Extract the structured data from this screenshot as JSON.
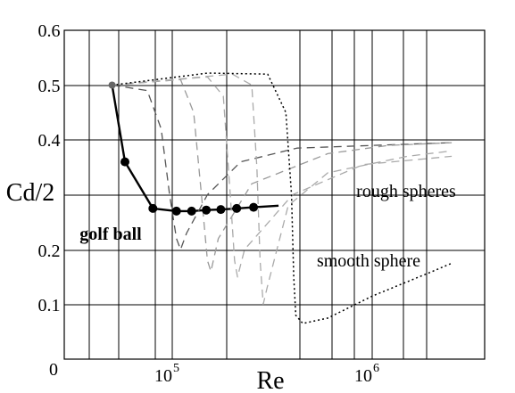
{
  "chart_data": {
    "type": "line",
    "x_scale": "log",
    "xlabel": "Re",
    "ylabel": "Cd/2",
    "ylim": [
      0,
      0.6
    ],
    "y_ticks": [
      "0",
      "0.1",
      "0.2",
      "0.4",
      "0.5",
      "0.6"
    ],
    "x_ticks": [
      {
        "value": 100000,
        "label": "10",
        "exp": "5"
      },
      {
        "value": 1000000,
        "label": "10",
        "exp": "6"
      }
    ],
    "grid": true,
    "annotations": [
      {
        "text": "golf ball",
        "x": 34000,
        "y": 0.245,
        "weight": "bold"
      },
      {
        "text": "rough spheres",
        "x": 850000,
        "y": 0.31
      },
      {
        "text": "smooth sphere",
        "x": 600000,
        "y": 0.18
      }
    ],
    "series": [
      {
        "style": "solid",
        "markers": true,
        "color": "#000000",
        "points": [
          [
            50000,
            0.5
          ],
          [
            58000,
            0.36
          ],
          [
            80000,
            0.275
          ],
          [
            105000,
            0.27
          ],
          [
            125000,
            0.27
          ],
          [
            148000,
            0.272
          ],
          [
            175000,
            0.273
          ],
          [
            210000,
            0.275
          ],
          [
            255000,
            0.277
          ],
          [
            340000,
            0.28
          ]
        ],
        "marker_indices": [
          0,
          1,
          2,
          3,
          4,
          5,
          6,
          7,
          8
        ]
      },
      {
        "style": "dashed",
        "color": "#555555",
        "points": [
          [
            50000,
            0.5
          ],
          [
            75000,
            0.49
          ],
          [
            88000,
            0.42
          ],
          [
            97000,
            0.3
          ],
          [
            105000,
            0.22
          ],
          [
            110000,
            0.2
          ],
          [
            118000,
            0.23
          ],
          [
            150000,
            0.3
          ],
          [
            220000,
            0.36
          ],
          [
            420000,
            0.385
          ],
          [
            1000000,
            0.39
          ],
          [
            2500000,
            0.395
          ]
        ]
      },
      {
        "style": "dashed",
        "color": "#999999",
        "points": [
          [
            50000,
            0.5
          ],
          [
            110000,
            0.51
          ],
          [
            128000,
            0.45
          ],
          [
            140000,
            0.3
          ],
          [
            150000,
            0.18
          ],
          [
            156000,
            0.16
          ],
          [
            170000,
            0.22
          ],
          [
            250000,
            0.32
          ],
          [
            600000,
            0.375
          ],
          [
            1200000,
            0.39
          ],
          [
            2500000,
            0.395
          ]
        ]
      },
      {
        "style": "dashed",
        "color": "#aaaaaa",
        "points": [
          [
            50000,
            0.5
          ],
          [
            150000,
            0.515
          ],
          [
            180000,
            0.48
          ],
          [
            195000,
            0.3
          ],
          [
            205000,
            0.18
          ],
          [
            212000,
            0.15
          ],
          [
            230000,
            0.2
          ],
          [
            400000,
            0.3
          ],
          [
            900000,
            0.355
          ],
          [
            2500000,
            0.37
          ]
        ]
      },
      {
        "style": "dashed",
        "color": "#aaaaaa",
        "points": [
          [
            50000,
            0.5
          ],
          [
            200000,
            0.52
          ],
          [
            250000,
            0.5
          ],
          [
            265000,
            0.35
          ],
          [
            275000,
            0.18
          ],
          [
            285000,
            0.1
          ],
          [
            298000,
            0.13
          ],
          [
            380000,
            0.28
          ],
          [
            600000,
            0.34
          ],
          [
            1500000,
            0.37
          ],
          [
            2500000,
            0.38
          ]
        ]
      },
      {
        "style": "dotted",
        "color": "#000000",
        "points": [
          [
            50000,
            0.5
          ],
          [
            150000,
            0.522
          ],
          [
            300000,
            0.52
          ],
          [
            370000,
            0.45
          ],
          [
            395000,
            0.3
          ],
          [
            405000,
            0.15
          ],
          [
            415000,
            0.08
          ],
          [
            450000,
            0.065
          ],
          [
            600000,
            0.075
          ],
          [
            1000000,
            0.115
          ],
          [
            2000000,
            0.16
          ],
          [
            2500000,
            0.175
          ]
        ]
      }
    ]
  }
}
